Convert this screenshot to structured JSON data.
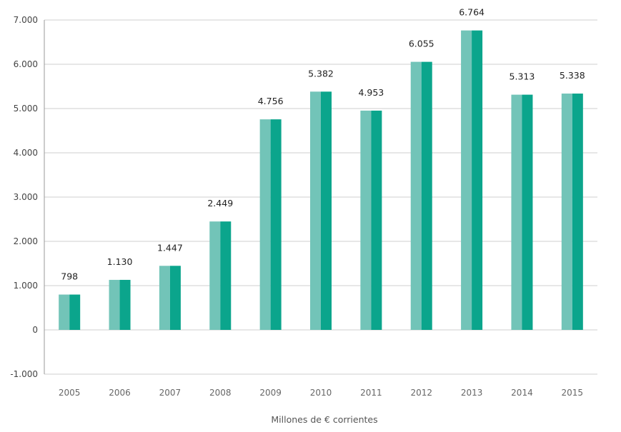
{
  "chart_data": {
    "type": "bar",
    "categories": [
      "2005",
      "2006",
      "2007",
      "2008",
      "2009",
      "2010",
      "2011",
      "2012",
      "2013",
      "2014",
      "2015"
    ],
    "values": [
      798,
      1130,
      1447,
      2449,
      4756,
      5382,
      4953,
      6055,
      6764,
      5313,
      5338
    ],
    "value_labels": [
      "798",
      "1.130",
      "1.447",
      "2.449",
      "4.756",
      "5.382",
      "4.953",
      "6.055",
      "6.764",
      "5.313",
      "5.338"
    ],
    "xlabel": "Millones de € corrientes",
    "ylabel": "",
    "ylim": [
      -1000,
      7000
    ],
    "yticks": [
      -1000,
      0,
      1000,
      2000,
      3000,
      4000,
      5000,
      6000,
      7000
    ],
    "ytick_labels": [
      "-1.000",
      "0",
      "1.000",
      "2.000",
      "3.000",
      "4.000",
      "5.000",
      "6.000",
      "7.000"
    ],
    "grid": true,
    "colors": {
      "bar_light": "#72c4b8",
      "bar_dark": "#0ba58c"
    }
  }
}
